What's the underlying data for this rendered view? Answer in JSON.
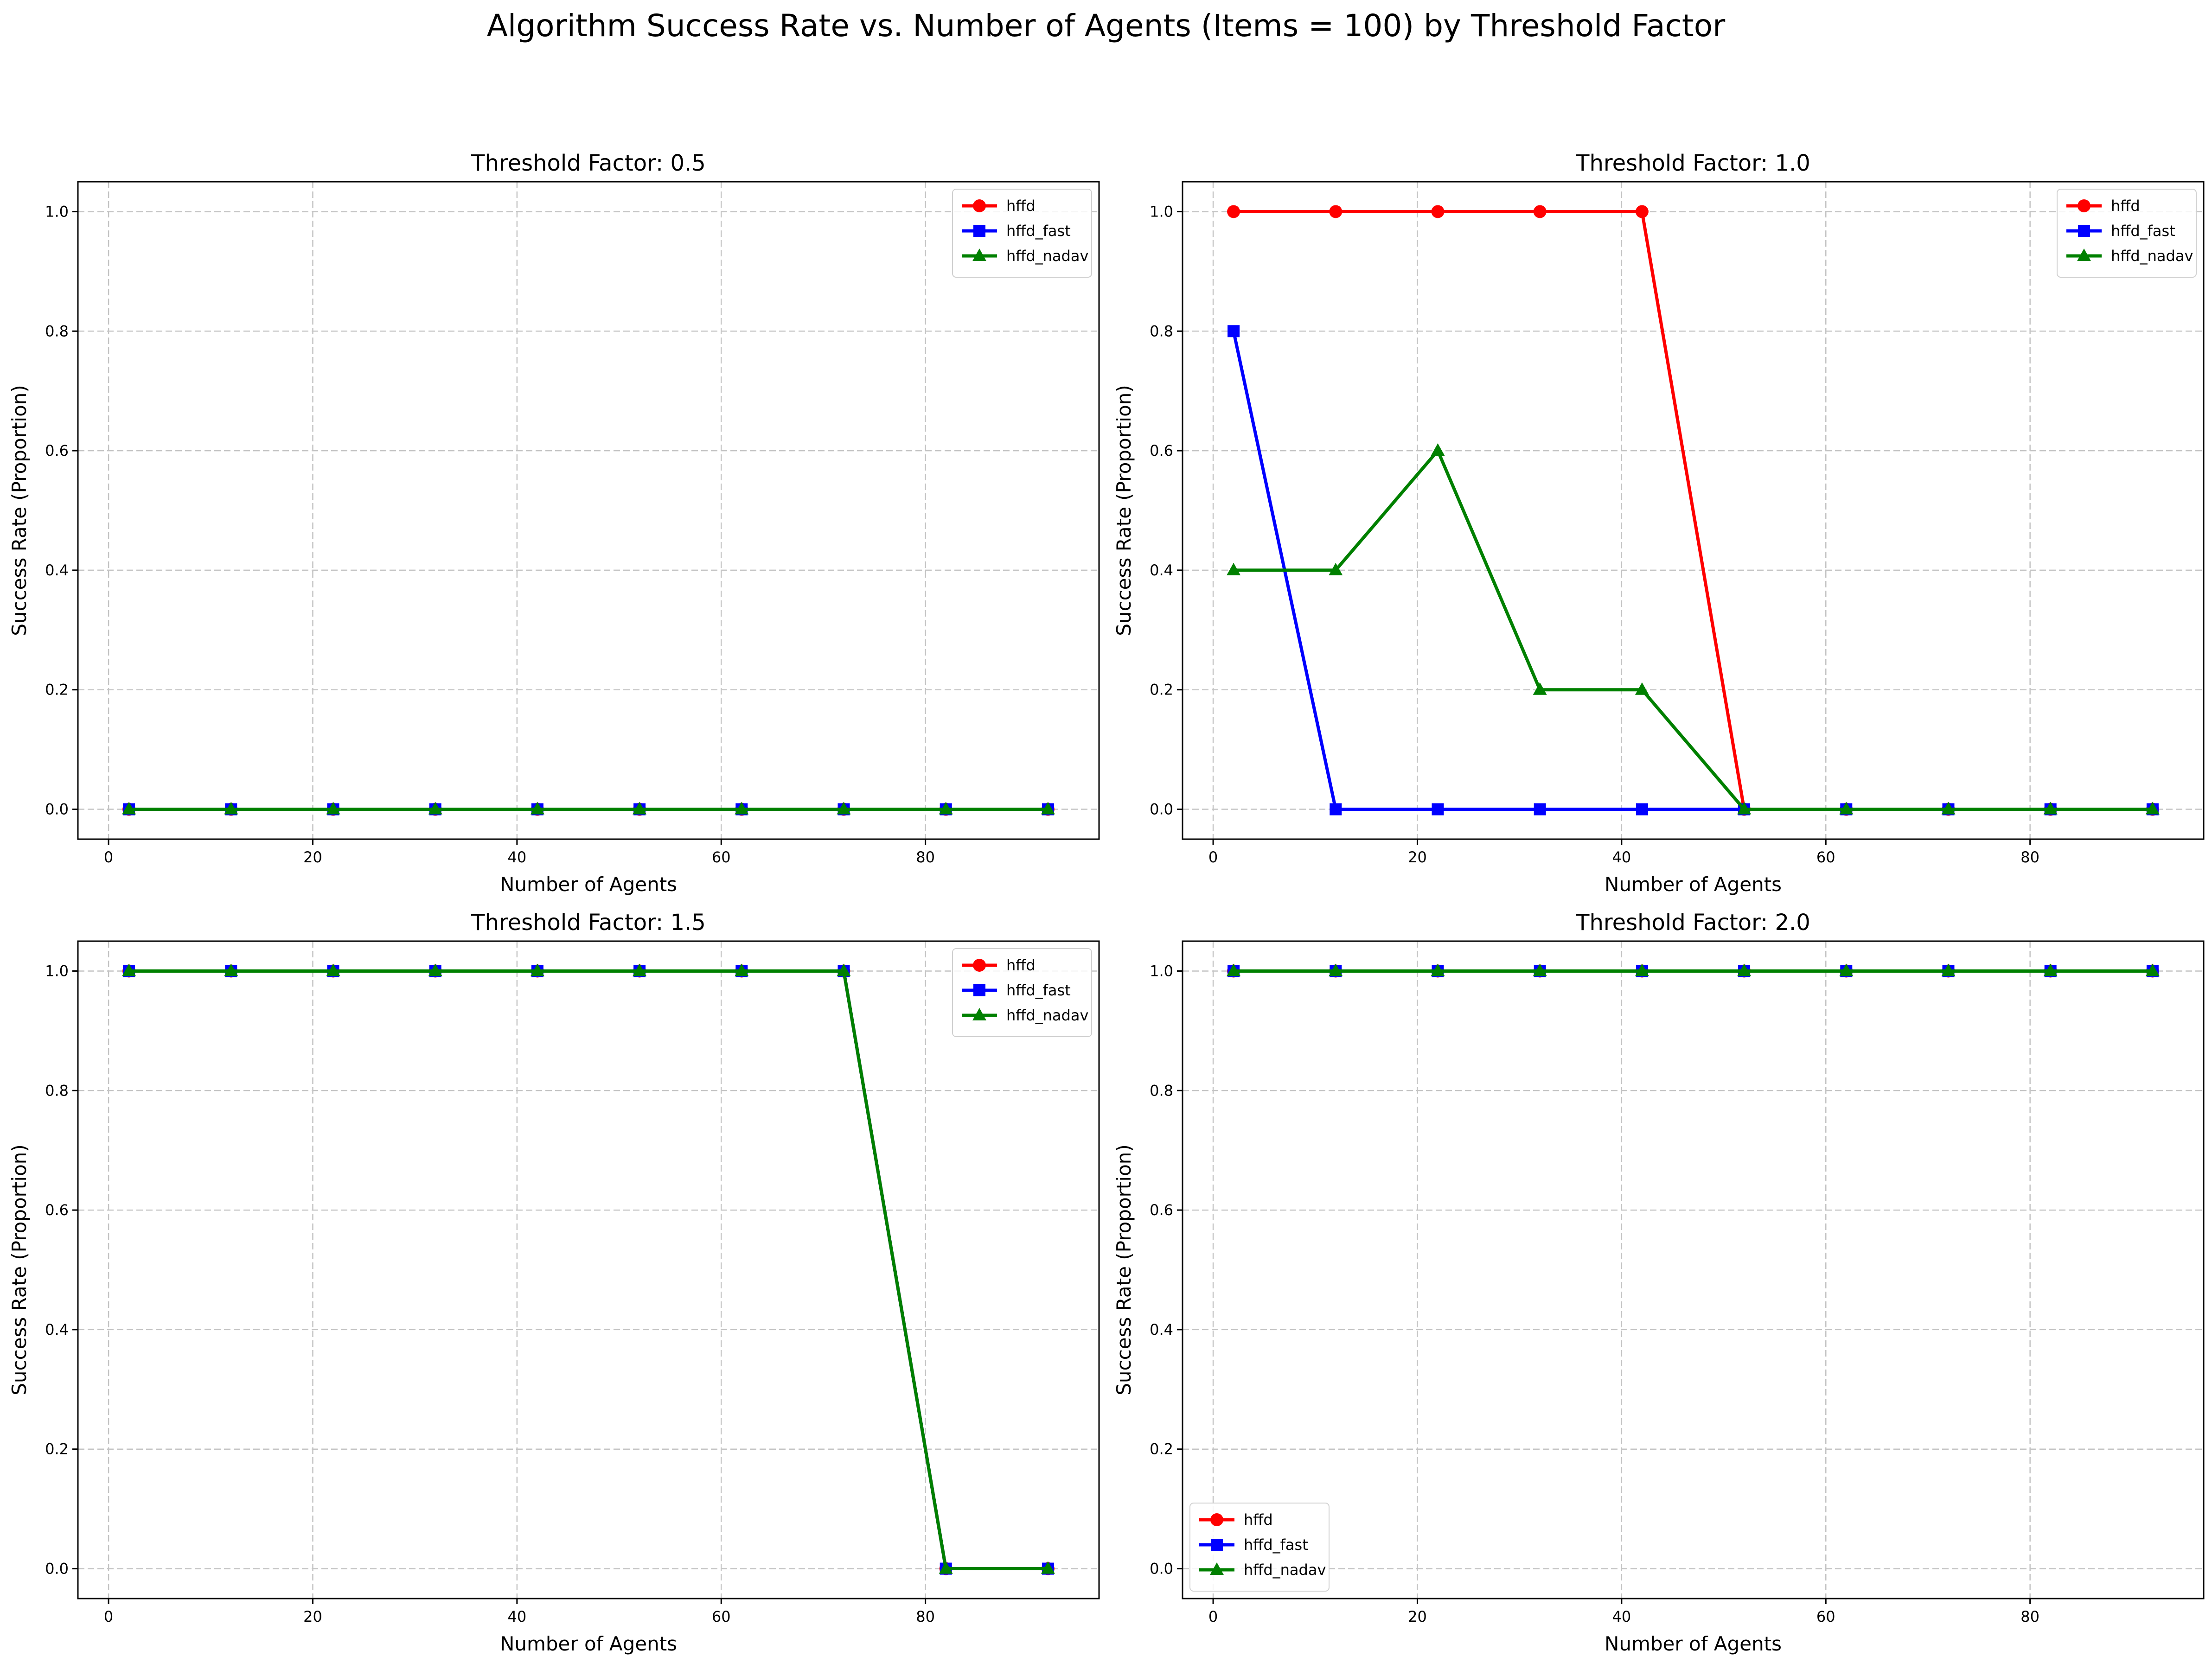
{
  "figure": {
    "title": "Algorithm Success Rate vs. Number of Agents (Items = 100) by Threshold Factor"
  },
  "legend_labels": [
    "hffd",
    "hffd_fast",
    "hffd_nadav"
  ],
  "series_style": [
    {
      "name": "hffd",
      "color": "#ff0000",
      "marker": "circle"
    },
    {
      "name": "hffd_fast",
      "color": "#0000ff",
      "marker": "square"
    },
    {
      "name": "hffd_nadav",
      "color": "#008000",
      "marker": "triangle"
    }
  ],
  "chart_data": [
    {
      "type": "line",
      "title": "Threshold Factor: 0.5",
      "xlabel": "Number of Agents",
      "ylabel": "Success Rate (Proportion)",
      "xlim": [
        -3,
        97
      ],
      "ylim": [
        -0.05,
        1.05
      ],
      "xticks": [
        0,
        20,
        40,
        60,
        80
      ],
      "xtick_labels": [
        "0",
        "20",
        "40",
        "60",
        "80"
      ],
      "yticks": [
        0,
        0.2,
        0.4,
        0.6,
        0.8,
        1.0
      ],
      "ytick_labels": [
        "0.0",
        "0.2",
        "0.4",
        "0.6",
        "0.8",
        "1.0"
      ],
      "grid": true,
      "legend_position": "upper-right",
      "x": [
        2,
        12,
        22,
        32,
        42,
        52,
        62,
        72,
        82,
        92
      ],
      "series": [
        {
          "name": "hffd",
          "values": [
            0,
            0,
            0,
            0,
            0,
            0,
            0,
            0,
            0,
            0
          ]
        },
        {
          "name": "hffd_fast",
          "values": [
            0,
            0,
            0,
            0,
            0,
            0,
            0,
            0,
            0,
            0
          ]
        },
        {
          "name": "hffd_nadav",
          "values": [
            0,
            0,
            0,
            0,
            0,
            0,
            0,
            0,
            0,
            0
          ]
        }
      ]
    },
    {
      "type": "line",
      "title": "Threshold Factor: 1.0",
      "xlabel": "Number of Agents",
      "ylabel": "Success Rate (Proportion)",
      "xlim": [
        -3,
        97
      ],
      "ylim": [
        -0.05,
        1.05
      ],
      "xticks": [
        0,
        20,
        40,
        60,
        80
      ],
      "xtick_labels": [
        "0",
        "20",
        "40",
        "60",
        "80"
      ],
      "yticks": [
        0,
        0.2,
        0.4,
        0.6,
        0.8,
        1.0
      ],
      "ytick_labels": [
        "0.0",
        "0.2",
        "0.4",
        "0.6",
        "0.8",
        "1.0"
      ],
      "grid": true,
      "legend_position": "upper-right",
      "x": [
        2,
        12,
        22,
        32,
        42,
        52,
        62,
        72,
        82,
        92
      ],
      "series": [
        {
          "name": "hffd",
          "values": [
            1,
            1,
            1,
            1,
            1,
            0,
            0,
            0,
            0,
            0
          ]
        },
        {
          "name": "hffd_fast",
          "values": [
            0.8,
            0,
            0,
            0,
            0,
            0,
            0,
            0,
            0,
            0
          ]
        },
        {
          "name": "hffd_nadav",
          "values": [
            0.4,
            0.4,
            0.6,
            0.2,
            0.2,
            0,
            0,
            0,
            0,
            0
          ]
        }
      ]
    },
    {
      "type": "line",
      "title": "Threshold Factor: 1.5",
      "xlabel": "Number of Agents",
      "ylabel": "Success Rate (Proportion)",
      "xlim": [
        -3,
        97
      ],
      "ylim": [
        -0.05,
        1.05
      ],
      "xticks": [
        0,
        20,
        40,
        60,
        80
      ],
      "xtick_labels": [
        "0",
        "20",
        "40",
        "60",
        "80"
      ],
      "yticks": [
        0,
        0.2,
        0.4,
        0.6,
        0.8,
        1.0
      ],
      "ytick_labels": [
        "0.0",
        "0.2",
        "0.4",
        "0.6",
        "0.8",
        "1.0"
      ],
      "grid": true,
      "legend_position": "upper-right",
      "x": [
        2,
        12,
        22,
        32,
        42,
        52,
        62,
        72,
        82,
        92
      ],
      "series": [
        {
          "name": "hffd",
          "values": [
            1,
            1,
            1,
            1,
            1,
            1,
            1,
            1,
            0,
            0
          ]
        },
        {
          "name": "hffd_fast",
          "values": [
            1,
            1,
            1,
            1,
            1,
            1,
            1,
            1,
            0,
            0
          ]
        },
        {
          "name": "hffd_nadav",
          "values": [
            1,
            1,
            1,
            1,
            1,
            1,
            1,
            1,
            0,
            0
          ]
        }
      ]
    },
    {
      "type": "line",
      "title": "Threshold Factor: 2.0",
      "xlabel": "Number of Agents",
      "ylabel": "Success Rate (Proportion)",
      "xlim": [
        -3,
        97
      ],
      "ylim": [
        -0.05,
        1.05
      ],
      "xticks": [
        0,
        20,
        40,
        60,
        80
      ],
      "xtick_labels": [
        "0",
        "20",
        "40",
        "60",
        "80"
      ],
      "yticks": [
        0,
        0.2,
        0.4,
        0.6,
        0.8,
        1.0
      ],
      "ytick_labels": [
        "0.0",
        "0.2",
        "0.4",
        "0.6",
        "0.8",
        "1.0"
      ],
      "grid": true,
      "legend_position": "lower-left",
      "x": [
        2,
        12,
        22,
        32,
        42,
        52,
        62,
        72,
        82,
        92
      ],
      "series": [
        {
          "name": "hffd",
          "values": [
            1,
            1,
            1,
            1,
            1,
            1,
            1,
            1,
            1,
            1
          ]
        },
        {
          "name": "hffd_fast",
          "values": [
            1,
            1,
            1,
            1,
            1,
            1,
            1,
            1,
            1,
            1
          ]
        },
        {
          "name": "hffd_nadav",
          "values": [
            1,
            1,
            1,
            1,
            1,
            1,
            1,
            1,
            1,
            1
          ]
        }
      ]
    }
  ]
}
